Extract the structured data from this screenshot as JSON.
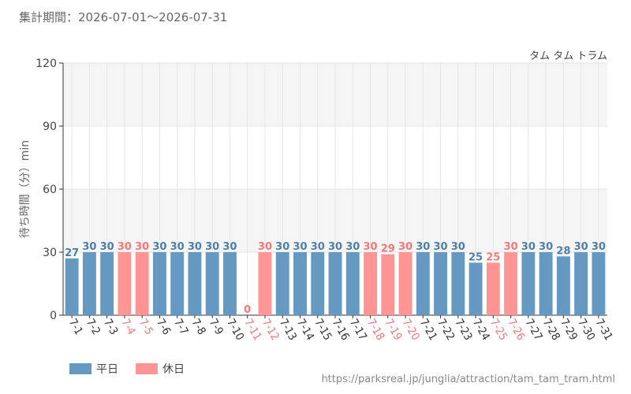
{
  "period": "集計期間：2026-07-01～2026-07-31",
  "attraction": "タム タム トラム",
  "source_url": "https://parksreal.jp/junglia/attraction/tam_tam_tram.html",
  "colors": {
    "weekday": "#6699c2",
    "holiday": "#ff9494",
    "weekday_text": "#4f7fa8",
    "holiday_text": "#f07a7a"
  },
  "legend": [
    {
      "label": "平日",
      "color_key": "weekday"
    },
    {
      "label": "休日",
      "color_key": "holiday"
    }
  ],
  "chart_data": {
    "type": "bar",
    "ylabel": "待ち時間（分）min",
    "xlabel": "",
    "ylim": [
      0,
      120
    ],
    "yticks": [
      0,
      30,
      60,
      90,
      120
    ],
    "grid": true,
    "categories": [
      "7-1",
      "7-2",
      "7-3",
      "7-4",
      "7-5",
      "7-6",
      "7-7",
      "7-8",
      "7-9",
      "7-10",
      "7-11",
      "7-12",
      "7-13",
      "7-14",
      "7-15",
      "7-16",
      "7-17",
      "7-18",
      "7-19",
      "7-20",
      "7-21",
      "7-22",
      "7-23",
      "7-24",
      "7-25",
      "7-26",
      "7-27",
      "7-28",
      "7-29",
      "7-30",
      "7-31"
    ],
    "values": [
      27,
      30,
      30,
      30,
      30,
      30,
      30,
      30,
      30,
      30,
      0,
      30,
      30,
      30,
      30,
      30,
      30,
      30,
      29,
      30,
      30,
      30,
      30,
      25,
      25,
      30,
      30,
      30,
      28,
      30,
      30
    ],
    "day_type": [
      "weekday",
      "weekday",
      "weekday",
      "holiday",
      "holiday",
      "weekday",
      "weekday",
      "weekday",
      "weekday",
      "weekday",
      "holiday",
      "holiday",
      "weekday",
      "weekday",
      "weekday",
      "weekday",
      "weekday",
      "holiday",
      "holiday",
      "holiday",
      "weekday",
      "weekday",
      "weekday",
      "weekday",
      "holiday",
      "holiday",
      "weekday",
      "weekday",
      "weekday",
      "weekday",
      "weekday"
    ]
  }
}
